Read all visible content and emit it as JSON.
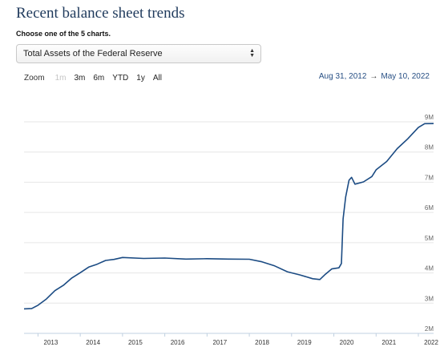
{
  "header": {
    "title": "Recent balance sheet trends",
    "subtitle": "Choose one of the 5 charts."
  },
  "selector": {
    "selected": "Total Assets of the Federal Reserve",
    "arrows": "▲▼"
  },
  "zoom": {
    "label": "Zoom",
    "buttons": [
      {
        "label": "1m",
        "disabled": true
      },
      {
        "label": "3m",
        "disabled": false
      },
      {
        "label": "6m",
        "disabled": false
      },
      {
        "label": "YTD",
        "disabled": false
      },
      {
        "label": "1y",
        "disabled": false
      },
      {
        "label": "All",
        "disabled": false
      }
    ]
  },
  "range": {
    "from": "Aug 31, 2012",
    "arrow": "→",
    "to": "May 10, 2022"
  },
  "colors": {
    "line": "#1b4b83",
    "title": "#1f3a5c",
    "range_text": "#274f84"
  },
  "chart_data": {
    "type": "line",
    "title": "",
    "xlabel": "",
    "ylabel": "",
    "x_unit": "year",
    "ylim": [
      2,
      9
    ],
    "xlim": [
      2012.67,
      2022.36
    ],
    "grid": true,
    "y_ticks": [
      {
        "value": 2,
        "label": "2M"
      },
      {
        "value": 3,
        "label": "3M"
      },
      {
        "value": 4,
        "label": "4M"
      },
      {
        "value": 5,
        "label": "5M"
      },
      {
        "value": 6,
        "label": "6M"
      },
      {
        "value": 7,
        "label": "7M"
      },
      {
        "value": 8,
        "label": "8M"
      },
      {
        "value": 9,
        "label": "9M"
      }
    ],
    "x_ticks": [
      "2013",
      "2014",
      "2015",
      "2016",
      "2017",
      "2018",
      "2019",
      "2020",
      "2021",
      "2022"
    ],
    "series": [
      {
        "values": [
          [
            2012.67,
            2.8
          ],
          [
            2012.85,
            2.83
          ],
          [
            2013.0,
            2.92
          ],
          [
            2013.2,
            3.15
          ],
          [
            2013.4,
            3.4
          ],
          [
            2013.6,
            3.6
          ],
          [
            2013.8,
            3.82
          ],
          [
            2014.0,
            4.02
          ],
          [
            2014.2,
            4.18
          ],
          [
            2014.4,
            4.3
          ],
          [
            2014.6,
            4.4
          ],
          [
            2014.8,
            4.46
          ],
          [
            2015.0,
            4.5
          ],
          [
            2015.5,
            4.49
          ],
          [
            2016.0,
            4.48
          ],
          [
            2016.5,
            4.47
          ],
          [
            2017.0,
            4.46
          ],
          [
            2017.5,
            4.47
          ],
          [
            2018.0,
            4.44
          ],
          [
            2018.3,
            4.38
          ],
          [
            2018.6,
            4.22
          ],
          [
            2018.9,
            4.05
          ],
          [
            2019.2,
            3.92
          ],
          [
            2019.5,
            3.82
          ],
          [
            2019.67,
            3.77
          ],
          [
            2019.8,
            3.97
          ],
          [
            2019.95,
            4.12
          ],
          [
            2020.12,
            4.18
          ],
          [
            2020.18,
            4.3
          ],
          [
            2020.22,
            5.8
          ],
          [
            2020.28,
            6.5
          ],
          [
            2020.36,
            7.08
          ],
          [
            2020.42,
            7.15
          ],
          [
            2020.5,
            6.95
          ],
          [
            2020.7,
            7.0
          ],
          [
            2020.9,
            7.2
          ],
          [
            2021.0,
            7.4
          ],
          [
            2021.25,
            7.7
          ],
          [
            2021.5,
            8.1
          ],
          [
            2021.75,
            8.45
          ],
          [
            2022.0,
            8.8
          ],
          [
            2022.15,
            8.95
          ],
          [
            2022.36,
            8.93
          ]
        ]
      }
    ]
  }
}
